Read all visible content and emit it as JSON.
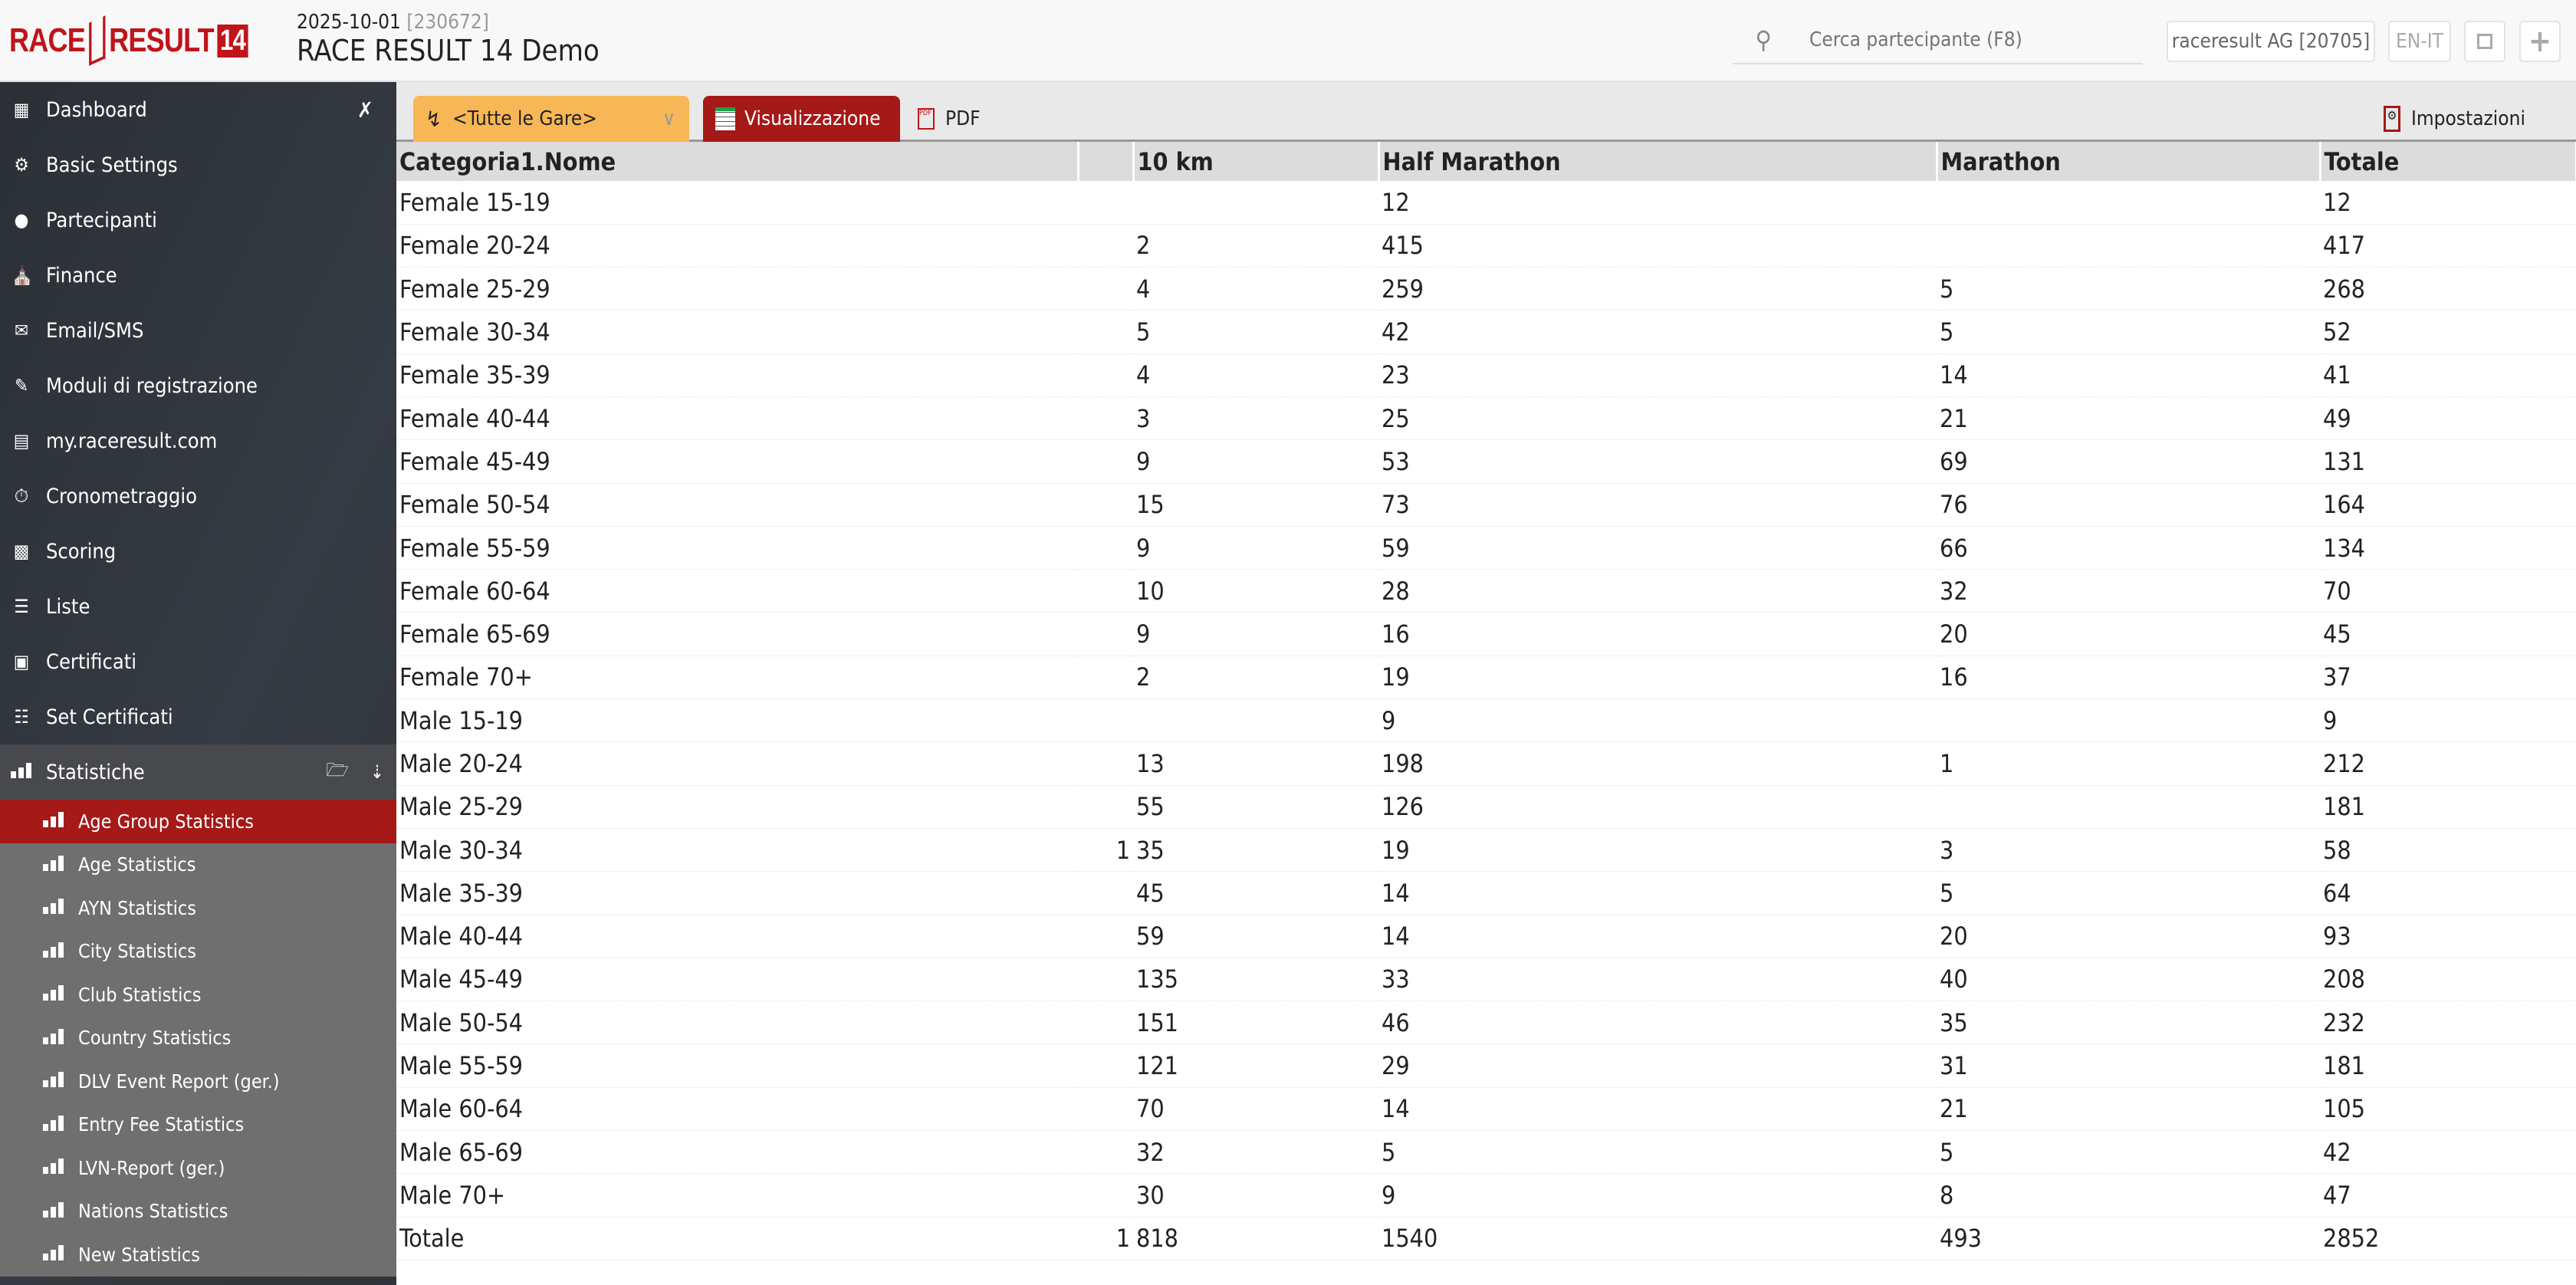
{
  "header": {
    "logo": "RACE RESULT 14",
    "date": "2025-10-01",
    "event_id": "[230672]",
    "title": "RACE RESULT 14 Demo",
    "search_placeholder": "Cerca partecipante (F8)",
    "account": "raceresult AG [20705]",
    "language": "EN-IT"
  },
  "sidebar": {
    "items": [
      {
        "label": "Dashboard",
        "icon": "dashboard-icon"
      },
      {
        "label": "Basic Settings",
        "icon": "gear-icon"
      },
      {
        "label": "Partecipanti",
        "icon": "user-icon"
      },
      {
        "label": "Finance",
        "icon": "bank-icon"
      },
      {
        "label": "Email/SMS",
        "icon": "mail-icon"
      },
      {
        "label": "Moduli di registrazione",
        "icon": "form-icon"
      },
      {
        "label": "my.raceresult.com",
        "icon": "web-icon"
      },
      {
        "label": "Cronometraggio",
        "icon": "stopwatch-icon"
      },
      {
        "label": "Scoring",
        "icon": "podium-icon"
      },
      {
        "label": "Liste",
        "icon": "list-icon"
      },
      {
        "label": "Certificati",
        "icon": "certificate-icon"
      },
      {
        "label": "Set Certificati",
        "icon": "certificate-set-icon"
      },
      {
        "label": "Statistiche",
        "icon": "stats-icon"
      }
    ],
    "stats_items": [
      "Age Group Statistics",
      "Age Statistics",
      "AYN Statistics",
      "City Statistics",
      "Club Statistics",
      "Country Statistics",
      "DLV Event Report (ger.)",
      "Entry Fee Statistics",
      "LVN-Report (ger.)",
      "Nations Statistics",
      "New Statistics"
    ],
    "active": "Age Group Statistics"
  },
  "toolbar": {
    "contest_select": "<Tutte le Gare>",
    "view_label": "Visualizzazione",
    "pdf_label": "PDF",
    "settings_label": "Impostazioni"
  },
  "colors": {
    "accent": "#a51918",
    "contest_select": "#f7b756",
    "sidebar": "#2f343a"
  },
  "table": {
    "columns": [
      "Categoria1.Nome",
      "",
      "10 km",
      "Half Marathon",
      "Marathon",
      "Totale"
    ],
    "rows": [
      [
        "Female 15-19",
        "",
        "",
        "12",
        "",
        "12"
      ],
      [
        "Female 20-24",
        "",
        "2",
        "415",
        "",
        "417"
      ],
      [
        "Female 25-29",
        "",
        "4",
        "259",
        "5",
        "268"
      ],
      [
        "Female 30-34",
        "",
        "5",
        "42",
        "5",
        "52"
      ],
      [
        "Female 35-39",
        "",
        "4",
        "23",
        "14",
        "41"
      ],
      [
        "Female 40-44",
        "",
        "3",
        "25",
        "21",
        "49"
      ],
      [
        "Female 45-49",
        "",
        "9",
        "53",
        "69",
        "131"
      ],
      [
        "Female 50-54",
        "",
        "15",
        "73",
        "76",
        "164"
      ],
      [
        "Female 55-59",
        "",
        "9",
        "59",
        "66",
        "134"
      ],
      [
        "Female 60-64",
        "",
        "10",
        "28",
        "32",
        "70"
      ],
      [
        "Female 65-69",
        "",
        "9",
        "16",
        "20",
        "45"
      ],
      [
        "Female 70+",
        "",
        "2",
        "19",
        "16",
        "37"
      ],
      [
        "Male 15-19",
        "",
        "",
        "9",
        "",
        "9"
      ],
      [
        "Male 20-24",
        "",
        "13",
        "198",
        "1",
        "212"
      ],
      [
        "Male 25-29",
        "",
        "55",
        "126",
        "",
        "181"
      ],
      [
        "Male 30-34",
        "1",
        "35",
        "19",
        "3",
        "58"
      ],
      [
        "Male 35-39",
        "",
        "45",
        "14",
        "5",
        "64"
      ],
      [
        "Male 40-44",
        "",
        "59",
        "14",
        "20",
        "93"
      ],
      [
        "Male 45-49",
        "",
        "135",
        "33",
        "40",
        "208"
      ],
      [
        "Male 50-54",
        "",
        "151",
        "46",
        "35",
        "232"
      ],
      [
        "Male 55-59",
        "",
        "121",
        "29",
        "31",
        "181"
      ],
      [
        "Male 60-64",
        "",
        "70",
        "14",
        "21",
        "105"
      ],
      [
        "Male 65-69",
        "",
        "32",
        "5",
        "5",
        "42"
      ],
      [
        "Male 70+",
        "",
        "30",
        "9",
        "8",
        "47"
      ],
      [
        "Totale",
        "1",
        "818",
        "1540",
        "493",
        "2852"
      ]
    ]
  }
}
